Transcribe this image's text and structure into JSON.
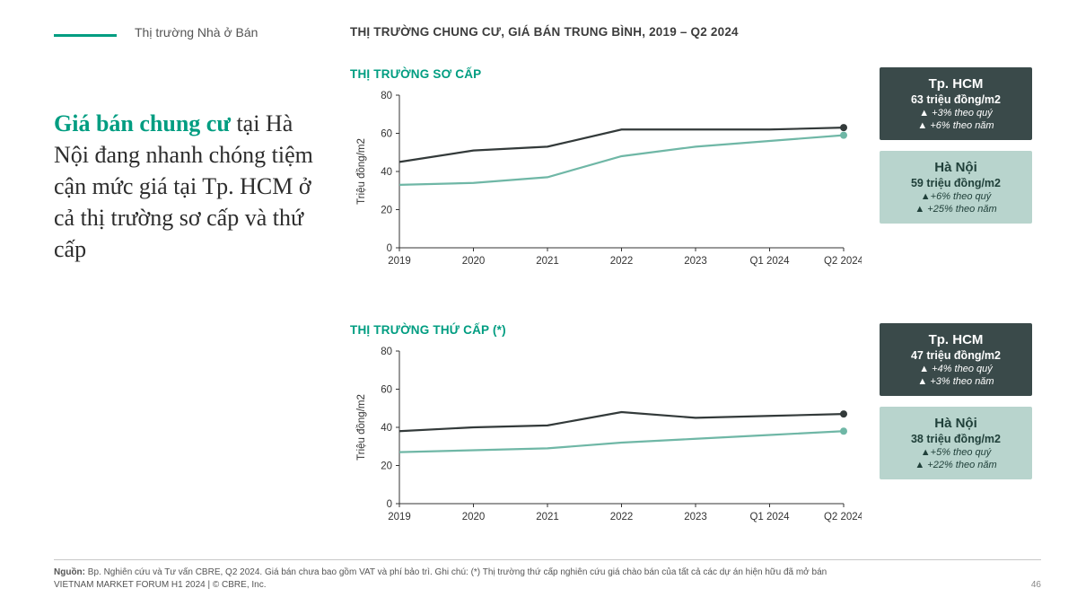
{
  "page": {
    "section_label": "Thị trường Nhà ở Bán",
    "title": "THỊ TRƯỜNG CHUNG CƯ, GIÁ BÁN TRUNG BÌNH, 2019 – Q2 2024",
    "pagenum": "46",
    "footer_source_label": "Nguồn:",
    "footer_source": "Bp. Nghiên cứu và Tư vấn CBRE, Q2 2024. Giá bán chưa bao gồm VAT và phí bảo trì. Ghi chú: (*) Thị trường thứ cấp nghiên cứu giá chào bán của tất cả các dự án hiện hữu đã mở bán",
    "footer_line2": "VIETNAM MARKET FORUM H1 2024 | © CBRE, Inc."
  },
  "headline_html_parts": {
    "em": "Giá bán chung cư",
    "rest": " tại Hà Nội đang nhanh chóng tiệm cận mức giá tại Tp. HCM ở cả thị trường sơ cấp và thứ cấp"
  },
  "colors": {
    "accent": "#009d81",
    "hcm_line": "#333a3a",
    "hn_line": "#6fb7a6",
    "box_dark_bg": "#3a4a4a",
    "box_light_bg": "#b8d4cd",
    "axis": "#333333"
  },
  "axes": {
    "categories": [
      "2019",
      "2020",
      "2021",
      "2022",
      "2023",
      "Q1 2024",
      "Q2 2024"
    ],
    "y_ticks": [
      0,
      20,
      40,
      60,
      80
    ],
    "y_max": 80,
    "y_axis_label": "Triệu đồng/m2",
    "line_width": 2.2,
    "marker_radius": 4
  },
  "charts": [
    {
      "title": "THỊ TRƯỜNG SƠ CẤP",
      "series": {
        "hcm": [
          45,
          51,
          53,
          62,
          62,
          62,
          63
        ],
        "hn": [
          33,
          34,
          37,
          48,
          53,
          56,
          59
        ]
      },
      "legend": [
        {
          "style": "dark",
          "city": "Tp. HCM",
          "price": "63 triệu đồng/m2",
          "d1": "▲ +3% theo quý",
          "d2": "▲ +6% theo năm"
        },
        {
          "style": "light",
          "city": "Hà Nội",
          "price": "59 triệu đồng/m2",
          "d1": "▲+6% theo quý",
          "d2": "▲ +25% theo năm"
        }
      ]
    },
    {
      "title": "THỊ TRƯỜNG THỨ CẤP (*)",
      "series": {
        "hcm": [
          38,
          40,
          41,
          48,
          45,
          46,
          47
        ],
        "hn": [
          27,
          28,
          29,
          32,
          34,
          36,
          38
        ]
      },
      "legend": [
        {
          "style": "dark",
          "city": "Tp. HCM",
          "price": "47 triệu đồng/m2",
          "d1": "▲ +4% theo quý",
          "d2": "▲ +3% theo năm"
        },
        {
          "style": "light",
          "city": "Hà Nội",
          "price": "38 triệu đồng/m2",
          "d1": "▲+5% theo quý",
          "d2": "▲ +22% theo năm"
        }
      ]
    }
  ]
}
